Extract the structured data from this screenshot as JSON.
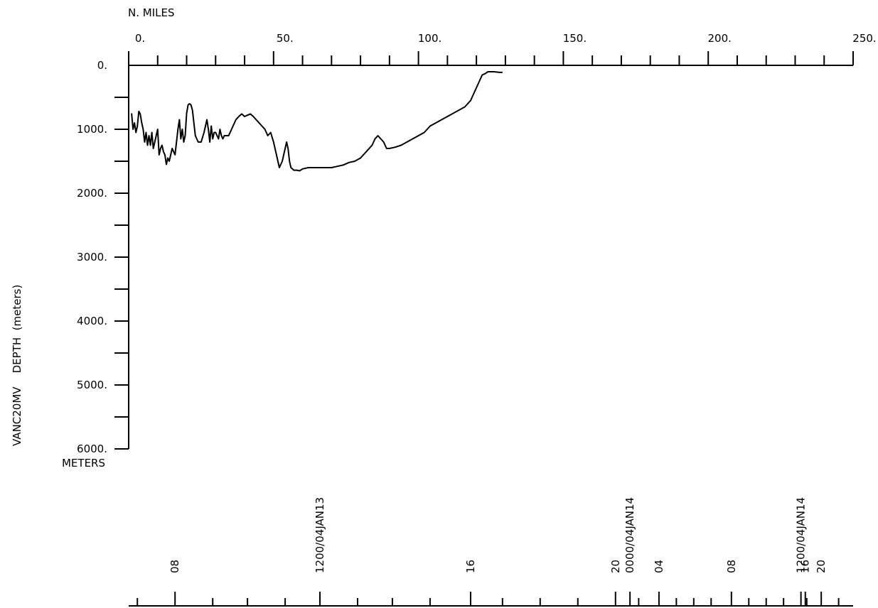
{
  "chart_data": {
    "type": "line",
    "top_axis": {
      "label": "N. MILES",
      "range": [
        0,
        250
      ],
      "major_ticks": [
        0,
        50,
        100,
        150,
        200,
        250
      ],
      "tick_labels": [
        "0.",
        "50.",
        "100.",
        "150.",
        "200.",
        "250."
      ],
      "minor_step": 10
    },
    "y_axis": {
      "label": "VANC20MV    DEPTH  (meters)",
      "units_label": "METERS",
      "range": [
        0,
        6000
      ],
      "inverted": true,
      "major_ticks": [
        0,
        1000,
        2000,
        3000,
        4000,
        5000,
        6000
      ],
      "tick_labels": [
        "0.",
        "1000.",
        "2000.",
        "3000.",
        "4000.",
        "5000.",
        "6000."
      ],
      "minor_step": 500
    },
    "time_axis": {
      "labels": [
        {
          "text": "08",
          "nm": 16
        },
        {
          "text": "1200/04JAN13",
          "nm": 66
        },
        {
          "text": "16",
          "nm": 118
        },
        {
          "text": "20",
          "nm": 168
        },
        {
          "text": "0000/04JAN14",
          "nm": 173
        },
        {
          "text": "04",
          "nm": 183
        },
        {
          "text": "08",
          "nm": 208
        },
        {
          "text": "1200/04JAN14",
          "nm": 232
        },
        {
          "text": "16",
          "nm": 233.5
        },
        {
          "text": "20",
          "nm": 239
        }
      ],
      "minor_ticks_nm": [
        3,
        29,
        41,
        54,
        79,
        91,
        104,
        129,
        142,
        155,
        176,
        189,
        195,
        201,
        214,
        220,
        226,
        234,
        245
      ]
    },
    "series": [
      {
        "x": [
          1,
          1.5,
          2,
          2.5,
          3,
          3.5,
          4,
          4.5,
          5,
          5.5,
          6,
          6.5,
          7,
          7.5,
          8,
          8.5,
          9,
          9.5,
          10,
          10.5,
          11,
          11.5,
          12,
          12.5,
          13,
          13.5,
          14,
          14.5,
          15,
          15.5,
          16,
          16.5,
          17,
          17.5,
          18,
          18.5,
          19,
          19.5,
          20,
          20.5,
          21,
          21.5,
          22,
          22.5,
          23,
          24,
          25,
          26,
          27,
          27.5,
          28,
          28.5,
          29,
          29.5,
          30,
          30.5,
          31,
          31.5,
          32,
          32.5,
          33,
          33.5,
          34,
          34.5,
          35,
          35.5,
          36,
          36.5,
          37,
          38,
          39,
          40,
          41,
          42,
          43,
          44,
          45,
          46,
          47,
          48,
          49,
          50,
          51,
          52,
          53,
          54,
          54.5,
          55,
          55.5,
          56,
          56.5,
          57,
          58,
          59,
          60,
          62,
          64,
          66,
          68,
          70,
          72,
          74,
          76,
          78,
          80,
          82,
          84,
          85,
          86,
          87,
          88,
          89,
          90,
          92,
          94,
          96,
          98,
          100,
          102,
          104,
          106,
          108,
          110,
          112,
          114,
          116,
          117,
          118,
          119,
          120,
          121,
          122,
          123,
          124,
          126,
          128,
          129
        ],
        "y": [
          750,
          1000,
          900,
          1050,
          950,
          720,
          760,
          900,
          1000,
          1200,
          1050,
          1250,
          1100,
          1250,
          1050,
          1300,
          1200,
          1100,
          1000,
          1400,
          1300,
          1250,
          1350,
          1400,
          1550,
          1450,
          1500,
          1400,
          1300,
          1350,
          1400,
          1200,
          1000,
          850,
          1150,
          1000,
          1200,
          1100,
          750,
          620,
          600,
          620,
          700,
          900,
          1100,
          1200,
          1200,
          1050,
          850,
          1000,
          1200,
          950,
          1150,
          1050,
          1050,
          1100,
          1150,
          1000,
          1100,
          1150,
          1100,
          1100,
          1100,
          1100,
          1050,
          1000,
          950,
          900,
          850,
          800,
          760,
          800,
          780,
          760,
          800,
          850,
          900,
          950,
          1000,
          1100,
          1050,
          1200,
          1400,
          1600,
          1500,
          1300,
          1200,
          1300,
          1500,
          1600,
          1620,
          1640,
          1640,
          1650,
          1620,
          1600,
          1600,
          1600,
          1600,
          1600,
          1580,
          1560,
          1520,
          1500,
          1450,
          1350,
          1250,
          1150,
          1100,
          1150,
          1200,
          1300,
          1300,
          1280,
          1250,
          1200,
          1150,
          1100,
          1050,
          950,
          900,
          850,
          800,
          750,
          700,
          650,
          600,
          550,
          450,
          350,
          250,
          150,
          130,
          100,
          100,
          110,
          110
        ],
        "color": "#000000"
      }
    ]
  }
}
